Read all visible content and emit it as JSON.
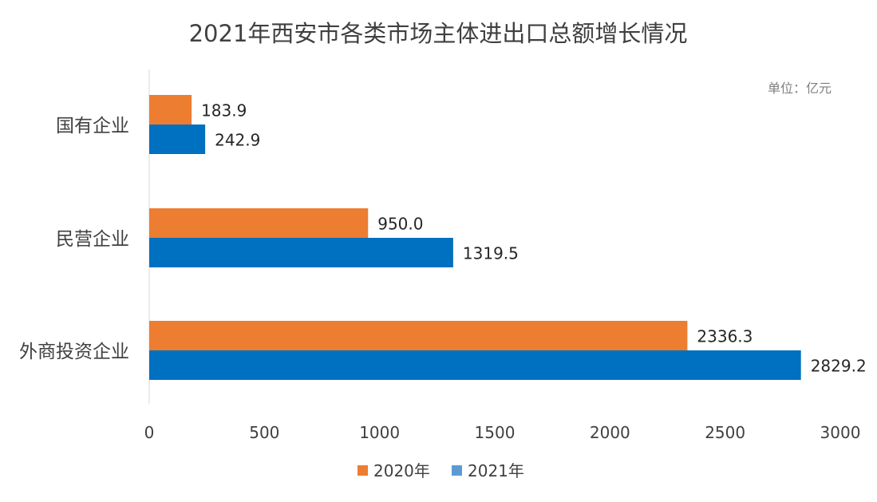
{
  "chart_data": {
    "type": "bar",
    "orientation": "horizontal",
    "title": "2021年西安市各类市场主体进出口总额增长情况",
    "unit_note": "单位：亿元",
    "categories": [
      "国有企业",
      "民营企业",
      "外商投资企业"
    ],
    "series": [
      {
        "name": "2020年",
        "values": [
          183.9,
          950.0,
          2336.3
        ],
        "color": "#ED7D31",
        "legend_color": "#ED7D31"
      },
      {
        "name": "2021年",
        "values": [
          242.9,
          1319.5,
          2829.2
        ],
        "color": "#0070C0",
        "legend_color": "#5B9BD5"
      }
    ],
    "data_labels": [
      [
        "183.9",
        "950.0",
        "2336.3"
      ],
      [
        "242.9",
        "1319.5",
        "2829.2"
      ]
    ],
    "xlim": [
      0,
      3000
    ],
    "xticks": [
      0,
      500,
      1000,
      1500,
      2000,
      2500,
      3000
    ],
    "grid": false,
    "legend_position": "bottom"
  }
}
